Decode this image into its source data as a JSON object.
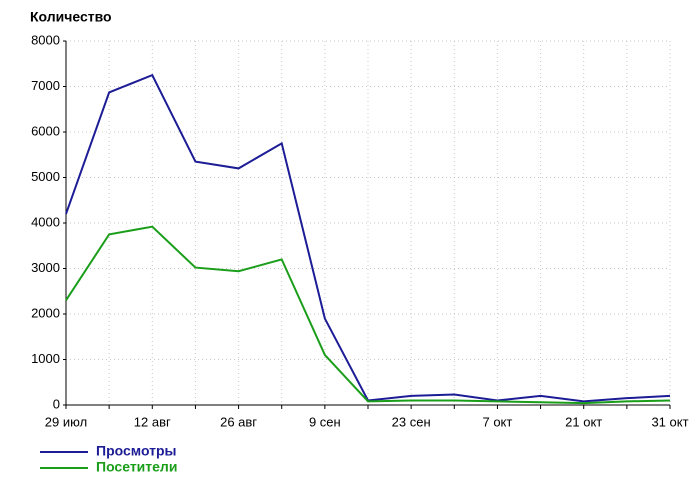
{
  "chart_data": {
    "type": "line",
    "title": "Количество",
    "categories": [
      "29 июл",
      null,
      "12 авг",
      null,
      "26 авг",
      null,
      "9 сен",
      null,
      "23 сен",
      null,
      "7 окт",
      null,
      "21 окт",
      null,
      "31 окт"
    ],
    "series": [
      {
        "name": "Просмотры",
        "color": "#1c1c96",
        "values": [
          4200,
          6870,
          7250,
          5350,
          5200,
          5750,
          1900,
          100,
          200,
          230,
          100,
          200,
          80,
          150,
          200
        ]
      },
      {
        "name": "Посетители",
        "color": "#1a9e1a",
        "values": [
          2300,
          3750,
          3920,
          3020,
          2940,
          3200,
          1100,
          80,
          100,
          100,
          80,
          60,
          40,
          80,
          100
        ]
      }
    ],
    "ylim": [
      0,
      8000
    ],
    "yticks": [
      0,
      1000,
      2000,
      3000,
      4000,
      5000,
      6000,
      7000,
      8000
    ],
    "grid": true
  }
}
